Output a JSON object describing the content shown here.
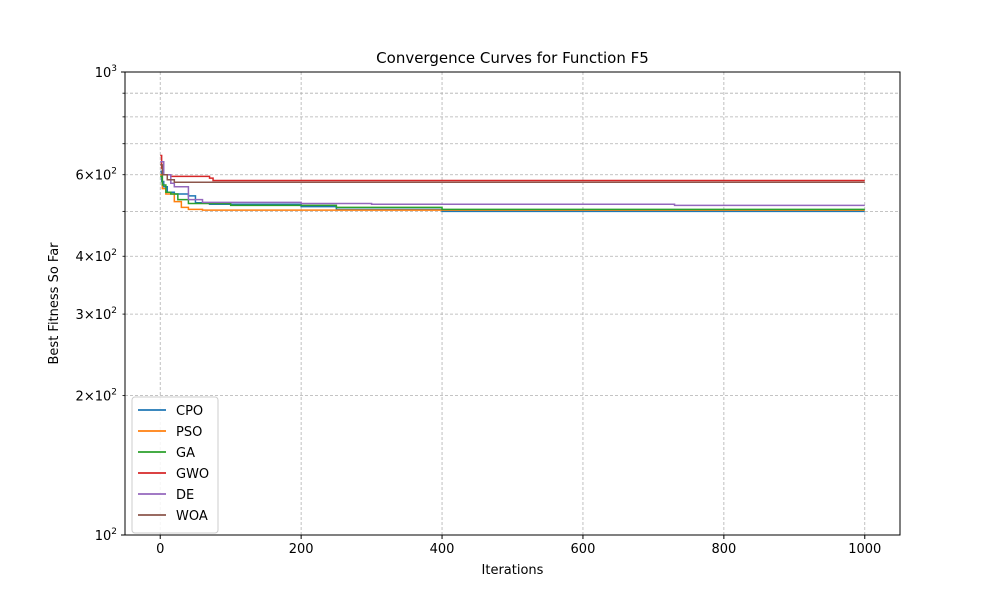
{
  "chart_data": {
    "type": "line",
    "title": "Convergence Curves for Function F5",
    "xlabel": "Iterations",
    "ylabel": "Best Fitness So Far",
    "xlim": [
      -50,
      1050
    ],
    "ylim": [
      100,
      1000
    ],
    "yscale": "log",
    "grid": true,
    "legend_position": "lower-left",
    "x_ticks": [
      0,
      200,
      400,
      600,
      800,
      1000
    ],
    "y_ticks_major": [
      {
        "value": 100,
        "base": "10",
        "exp": "2"
      },
      {
        "value": 1000,
        "base": "10",
        "exp": "3"
      }
    ],
    "y_ticks_minor": [
      {
        "value": 200,
        "mantissa": "2",
        "exp": "2"
      },
      {
        "value": 300,
        "mantissa": "3",
        "exp": "2"
      },
      {
        "value": 400,
        "mantissa": "4",
        "exp": "2"
      },
      {
        "value": 600,
        "mantissa": "6",
        "exp": "2"
      }
    ],
    "y_minor_unlabeled": [
      500,
      700,
      800,
      900
    ],
    "series": [
      {
        "name": "CPO",
        "color": "#1f77b4",
        "x": [
          0,
          2,
          5,
          10,
          20,
          40,
          50,
          70,
          200,
          250,
          400,
          1000
        ],
        "y": [
          610,
          580,
          565,
          550,
          545,
          540,
          522,
          518,
          512,
          505,
          500,
          500
        ]
      },
      {
        "name": "PSO",
        "color": "#ff7f0e",
        "x": [
          0,
          3,
          8,
          20,
          30,
          40,
          60,
          200,
          1000
        ],
        "y": [
          600,
          560,
          545,
          525,
          510,
          505,
          503,
          503,
          503
        ]
      },
      {
        "name": "GA",
        "color": "#2ca02c",
        "x": [
          0,
          3,
          8,
          15,
          25,
          40,
          100,
          250,
          400,
          1000
        ],
        "y": [
          595,
          570,
          550,
          545,
          530,
          520,
          515,
          510,
          505,
          505
        ]
      },
      {
        "name": "GWO",
        "color": "#d62728",
        "x": [
          0,
          2,
          5,
          15,
          50,
          70,
          75,
          1000
        ],
        "y": [
          660,
          620,
          600,
          595,
          595,
          590,
          583,
          583
        ]
      },
      {
        "name": "DE",
        "color": "#9467bd",
        "x": [
          0,
          5,
          15,
          20,
          40,
          60,
          200,
          300,
          730,
          1000
        ],
        "y": [
          640,
          600,
          575,
          565,
          530,
          523,
          520,
          518,
          515,
          515
        ]
      },
      {
        "name": "WOA",
        "color": "#8c564b",
        "x": [
          0,
          3,
          10,
          20,
          1000
        ],
        "y": [
          630,
          600,
          585,
          578,
          578
        ]
      }
    ]
  }
}
